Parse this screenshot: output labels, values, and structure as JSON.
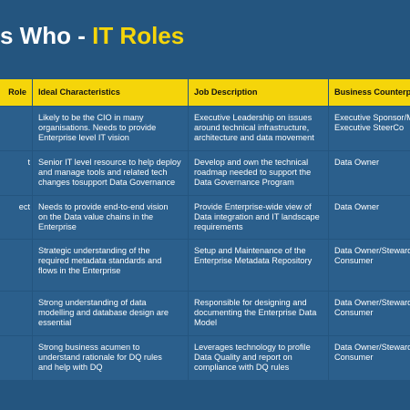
{
  "title": {
    "prefix": "s Who - ",
    "accent": "IT Roles"
  },
  "colors": {
    "background": "#24557f",
    "accent": "#f5d50a",
    "cell": "#2b5f8c",
    "header_text": "#111111"
  },
  "table": {
    "headers": [
      "Role",
      "Ideal Characteristics",
      "Job Description",
      "Business Counterpar"
    ],
    "rows": [
      {
        "role": "",
        "characteristics": [
          "Likely to be the CIO in many",
          "organisations. Needs to provide",
          "Enterprise level IT vision"
        ],
        "description": [
          "Executive Leadership on issues",
          "around technical infrastructure,",
          "architecture and data movement"
        ],
        "counterpart": [
          "Executive Sponsor/M",
          "Executive SteerCo"
        ]
      },
      {
        "role": "t",
        "characteristics": [
          "Senior IT level resource to help deploy",
          "and manage tools and related tech",
          "changes tosupport Data Governance"
        ],
        "description": [
          "Develop and own the technical",
          "roadmap needed to support the",
          "Data Governance Program"
        ],
        "counterpart": [
          "Data Owner"
        ]
      },
      {
        "role": "ect",
        "characteristics": [
          "Needs to provide end-to-end vision",
          "on the Data value chains in the",
          "Enterprise"
        ],
        "description": [
          "Provide Enterprise-wide view of",
          "Data integration and IT landscape",
          "requirements"
        ],
        "counterpart": [
          "Data Owner"
        ]
      },
      {
        "role": "",
        "characteristics": [
          "Strategic understanding of the",
          "required metadata standards and",
          "flows in the Enterprise"
        ],
        "description": [
          "Setup and Maintenance of the",
          "Enterprise Metadata Repository"
        ],
        "counterpart": [
          "Data Owner/Steward",
          "Consumer"
        ]
      },
      {
        "role": "",
        "characteristics": [
          "Strong understanding of data",
          "modelling and database design are",
          "essential"
        ],
        "description": [
          "Responsible for designing and",
          "documenting the Enterprise Data",
          "Model"
        ],
        "counterpart": [
          "Data Owner/Steward",
          "Consumer"
        ]
      },
      {
        "role": "",
        "characteristics": [
          "Strong business acumen to",
          "understand rationale for DQ rules",
          "and help with DQ"
        ],
        "description": [
          "Leverages technology to profile",
          "Data Quality and report on",
          "compliance with DQ rules"
        ],
        "counterpart": [
          "Data Owner/Steward",
          "Consumer"
        ]
      }
    ]
  }
}
